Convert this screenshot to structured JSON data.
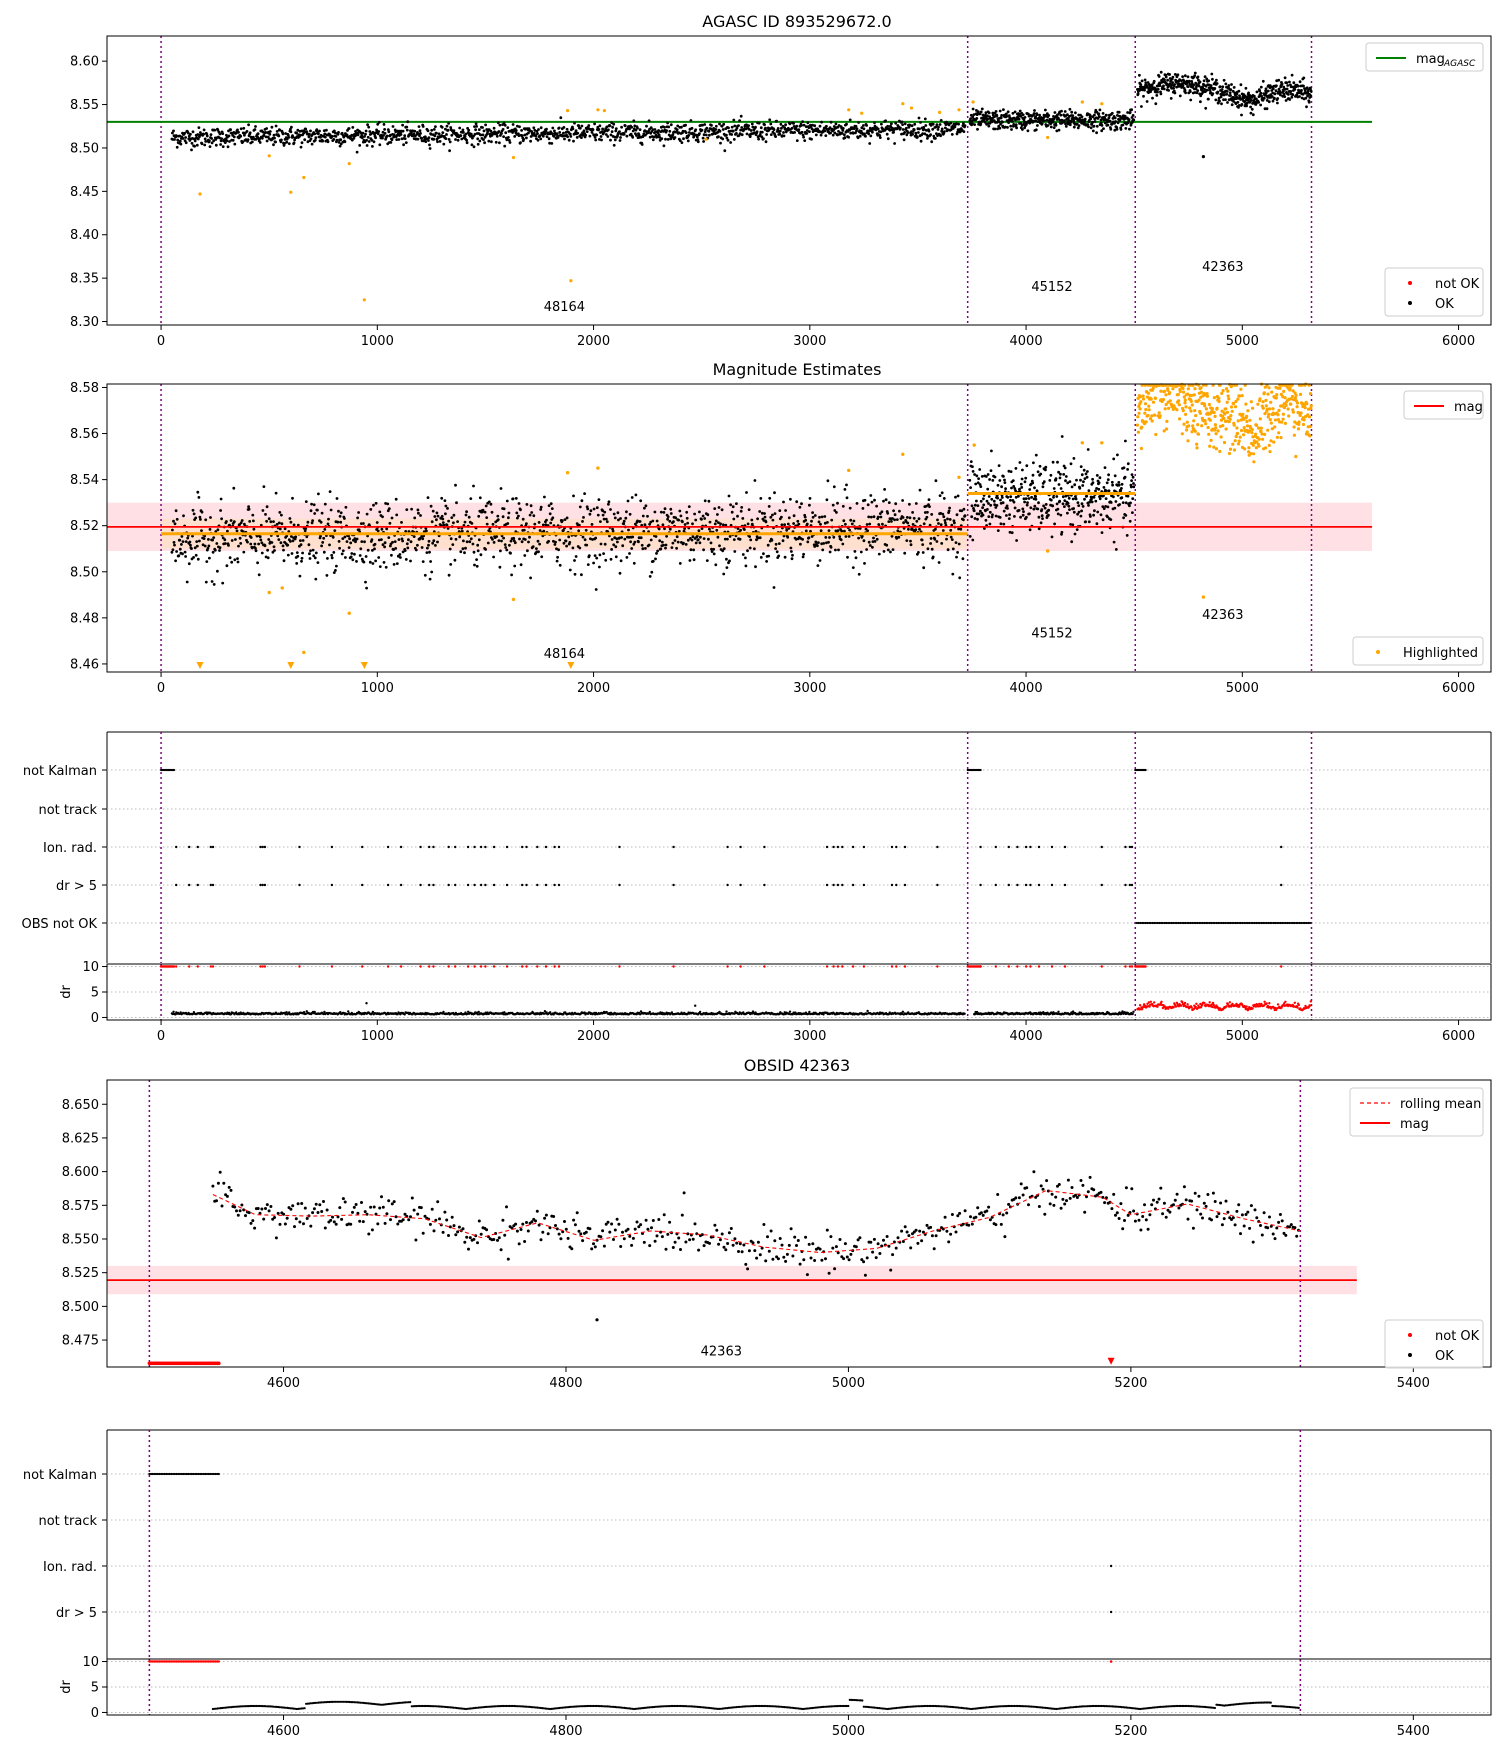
{
  "colors": {
    "ok": "#000000",
    "not_ok": "#ff0000",
    "highlight": "#ffa500",
    "agasc_line": "#008000",
    "mag_line": "#ff0000",
    "obs_boundary": "#800080",
    "band": "#ffd6dc",
    "orange_band": "#ffe0c8",
    "grid": "#bbbbbb"
  },
  "chart_data": [
    {
      "id": "agasc",
      "type": "scatter",
      "title": "AGASC ID 893529672.0",
      "xlabel": "",
      "ylabel": "",
      "xlim": [
        -250,
        6150
      ],
      "ylim": [
        8.296,
        8.629
      ],
      "xticks": [
        0,
        1000,
        2000,
        3000,
        4000,
        5000,
        6000
      ],
      "yticks": [
        8.3,
        8.35,
        8.4,
        8.45,
        8.5,
        8.55,
        8.6
      ],
      "ytick_labels": [
        "8.30",
        "8.35",
        "8.40",
        "8.45",
        "8.50",
        "8.55",
        "8.60"
      ],
      "grid": false,
      "boundaries": [
        0,
        3730,
        4505,
        5320
      ],
      "obsid_labels": [
        {
          "text": "48164",
          "x": 1865,
          "y": 8.312
        },
        {
          "text": "45152",
          "x": 4120,
          "y": 8.335
        },
        {
          "text": "42363",
          "x": 4910,
          "y": 8.358
        }
      ],
      "hline": {
        "y": 8.53,
        "x0": -250,
        "x1": 5600,
        "name": "mag"
      },
      "legend_top": {
        "position": "top-right",
        "entries": [
          {
            "label": "mag",
            "sub": "AGASC",
            "style": "line"
          }
        ]
      },
      "legend_bottom": {
        "position": "bottom-right",
        "entries": [
          {
            "label": "not OK",
            "style": "dot-red"
          },
          {
            "label": "OK",
            "style": "dot-black"
          }
        ]
      },
      "segments": [
        {
          "x0": 50,
          "x1": 3720,
          "start": 8.512,
          "end": 8.522,
          "noise": 0.0055,
          "n": 1500
        },
        {
          "x0": 3740,
          "x1": 4500,
          "start": 8.532,
          "end": 8.532,
          "noise": 0.0055,
          "n": 450
        },
        {
          "x0": 4515,
          "x1": 5320,
          "start": 8.566,
          "end": 8.56,
          "noise": 0.0065,
          "n": 520
        }
      ],
      "highlighted": [
        [
          180,
          8.447
        ],
        [
          600,
          8.449
        ],
        [
          660,
          8.466
        ],
        [
          870,
          8.482
        ],
        [
          940,
          8.325
        ],
        [
          1630,
          8.489
        ],
        [
          1880,
          8.543
        ],
        [
          1895,
          8.347
        ],
        [
          2020,
          8.544
        ],
        [
          2050,
          8.543
        ],
        [
          2520,
          8.51
        ],
        [
          3180,
          8.544
        ],
        [
          3240,
          8.54
        ],
        [
          3430,
          8.551
        ],
        [
          3470,
          8.546
        ],
        [
          3600,
          8.541
        ],
        [
          3690,
          8.544
        ],
        [
          3755,
          8.553
        ],
        [
          4100,
          8.512
        ],
        [
          4260,
          8.553
        ],
        [
          4350,
          8.551
        ],
        [
          500,
          8.491
        ]
      ],
      "extra_points": [
        [
          4820,
          8.49
        ]
      ]
    },
    {
      "id": "estimates",
      "type": "scatter",
      "title": "Magnitude Estimates",
      "xlabel": "",
      "ylabel": "",
      "xlim": [
        -250,
        6150
      ],
      "ylim": [
        8.4565,
        8.5815
      ],
      "xticks": [
        0,
        1000,
        2000,
        3000,
        4000,
        5000,
        6000
      ],
      "yticks": [
        8.46,
        8.48,
        8.5,
        8.52,
        8.54,
        8.56,
        8.58
      ],
      "ytick_labels": [
        "8.46",
        "8.48",
        "8.50",
        "8.52",
        "8.54",
        "8.56",
        "8.58"
      ],
      "grid": false,
      "boundaries": [
        0,
        3730,
        4505,
        5320
      ],
      "obsid_labels": [
        {
          "text": "48164",
          "x": 1865,
          "y": 8.4625
        },
        {
          "text": "45152",
          "x": 4120,
          "y": 8.4715
        },
        {
          "text": "42363",
          "x": 4910,
          "y": 8.4795
        }
      ],
      "hline": {
        "y": 8.5195,
        "x0": -250,
        "x1": 5600,
        "name": "mag"
      },
      "band": {
        "y0": 8.509,
        "y1": 8.53,
        "x0": -250,
        "x1": 5600
      },
      "orange_lines": [
        {
          "x0": 0,
          "x1": 3730,
          "y": 8.5165
        },
        {
          "x0": 3730,
          "x1": 4505,
          "y": 8.534
        }
      ],
      "orange_band": {
        "x0": 0,
        "x1": 3730,
        "y0": 8.51,
        "y1": 8.523
      },
      "legend_top": {
        "position": "top-right",
        "entries": [
          {
            "label": "mag",
            "style": "line-red"
          }
        ]
      },
      "legend_bottom": {
        "position": "bottom-right",
        "entries": [
          {
            "label": "Highlighted",
            "style": "dot-orange"
          }
        ]
      },
      "segments": [
        {
          "x0": 50,
          "x1": 3720,
          "start": 8.514,
          "end": 8.52,
          "noise": 0.0075,
          "n": 1500
        },
        {
          "x0": 3740,
          "x1": 4500,
          "start": 8.532,
          "end": 8.532,
          "noise": 0.0075,
          "n": 450
        }
      ],
      "orange_segment": {
        "x0": 4515,
        "x1": 5320,
        "start": 8.566,
        "end": 8.565,
        "noise": 0.008,
        "n": 520
      },
      "highlighted": [
        [
          500,
          8.491
        ],
        [
          560,
          8.493
        ],
        [
          660,
          8.465
        ],
        [
          870,
          8.482
        ],
        [
          1630,
          8.488
        ],
        [
          1880,
          8.543
        ],
        [
          2020,
          8.545
        ],
        [
          3180,
          8.544
        ],
        [
          3430,
          8.551
        ],
        [
          3690,
          8.541
        ],
        [
          3760,
          8.555
        ],
        [
          4100,
          8.509
        ],
        [
          4260,
          8.556
        ],
        [
          4350,
          8.556
        ],
        [
          4820,
          8.489
        ]
      ],
      "triangles": [
        [
          180,
          8.458
        ],
        [
          600,
          8.458
        ],
        [
          940,
          8.458
        ],
        [
          1895,
          8.458
        ]
      ]
    },
    {
      "id": "flags",
      "type": "scatter",
      "title": "",
      "xlim": [
        -250,
        6150
      ],
      "categories": [
        "not Kalman",
        "not track",
        "Ion. rad.",
        "dr > 5",
        "OBS not OK"
      ],
      "boundaries": [
        0,
        3730,
        4505,
        5320
      ],
      "flag_marks": {
        "not Kalman": [
          [
            0,
            60
          ],
          [
            3730,
            3790
          ],
          [
            4505,
            4555
          ]
        ],
        "not track": [],
        "Ion. rad.": [
          70,
          130,
          170,
          230,
          240,
          460,
          470,
          480,
          640,
          790,
          930,
          1050,
          1110,
          1200,
          1240,
          1260,
          1330,
          1360,
          1420,
          1450,
          1480,
          1500,
          1540,
          1600,
          1670,
          1690,
          1740,
          1780,
          1820,
          1840,
          2120,
          2370,
          2620,
          2680,
          2790,
          3080,
          3110,
          3130,
          3150,
          3200,
          3250,
          3380,
          3400,
          3440,
          3590,
          3790,
          3860,
          3920,
          3960,
          4000,
          4020,
          4060,
          4120,
          4180,
          4350,
          4460,
          4480,
          4490,
          5180
        ],
        "dr > 5": [
          70,
          130,
          170,
          230,
          240,
          460,
          470,
          480,
          640,
          790,
          930,
          1050,
          1110,
          1200,
          1240,
          1260,
          1330,
          1360,
          1420,
          1450,
          1480,
          1500,
          1540,
          1600,
          1670,
          1690,
          1740,
          1780,
          1820,
          1840,
          2120,
          2370,
          2620,
          2680,
          2790,
          3080,
          3110,
          3130,
          3150,
          3200,
          3250,
          3380,
          3400,
          3440,
          3590,
          3790,
          3860,
          3920,
          3960,
          4000,
          4020,
          4060,
          4120,
          4180,
          4350,
          4460,
          4480,
          4490,
          5180
        ],
        "OBS not OK": [
          [
            4505,
            5320
          ]
        ]
      }
    },
    {
      "id": "dr",
      "type": "scatter",
      "ylabel": "dr",
      "xlim": [
        -250,
        6150
      ],
      "ylim": [
        -0.5,
        10.5
      ],
      "yticks": [
        0,
        5,
        10
      ],
      "ytick_labels": [
        "0",
        "5",
        "10"
      ],
      "xticks": [
        0,
        1000,
        2000,
        3000,
        4000,
        5000,
        6000
      ],
      "boundaries": [
        0,
        3730,
        4505,
        5320
      ],
      "segments": [
        {
          "x0": 50,
          "x1": 3720,
          "mean": 0.6,
          "noise": 0.25,
          "n": 900,
          "color": "ok"
        },
        {
          "x0": 3760,
          "x1": 4500,
          "mean": 0.6,
          "noise": 0.25,
          "n": 220,
          "color": "ok"
        },
        {
          "x0": 4515,
          "x1": 5320,
          "mean": 1.3,
          "noise": 0.5,
          "n": 260,
          "color": "not_ok"
        }
      ],
      "outliers": [
        [
          950,
          2.8
        ],
        [
          2470,
          2.3
        ]
      ],
      "top_red": [
        [
          0,
          60
        ],
        [
          3730,
          3790
        ],
        [
          4505,
          4555
        ]
      ],
      "top_red_singles": [
        70,
        130,
        170,
        230,
        240,
        460,
        470,
        480,
        640,
        790,
        930,
        1050,
        1110,
        1200,
        1240,
        1260,
        1330,
        1360,
        1420,
        1450,
        1480,
        1500,
        1540,
        1600,
        1670,
        1690,
        1740,
        1780,
        1820,
        1840,
        2120,
        2370,
        2620,
        2680,
        2790,
        3080,
        3110,
        3130,
        3150,
        3200,
        3250,
        3380,
        3400,
        3440,
        3590,
        3790,
        3860,
        3920,
        3960,
        4000,
        4020,
        4060,
        4120,
        4180,
        4350,
        4460,
        4480,
        4490,
        5180
      ]
    },
    {
      "id": "obsid",
      "type": "scatter",
      "title": "OBSID 42363",
      "xlim": [
        4475,
        5455
      ],
      "ylim": [
        8.455,
        8.668
      ],
      "xticks": [
        4600,
        4800,
        5000,
        5200,
        5400
      ],
      "yticks": [
        8.475,
        8.5,
        8.525,
        8.55,
        8.575,
        8.6,
        8.625,
        8.65
      ],
      "ytick_labels": [
        "8.475",
        "8.500",
        "8.525",
        "8.550",
        "8.575",
        "8.600",
        "8.625",
        "8.650"
      ],
      "boundaries": [
        4505,
        5320
      ],
      "obsid_labels": [
        {
          "text": "42363",
          "x": 4910,
          "y": 8.4635
        }
      ],
      "hline": {
        "y": 8.5195,
        "x0": 4475,
        "x1": 5360,
        "name": "mag"
      },
      "band": {
        "y0": 8.509,
        "y1": 8.53,
        "x0": 4475,
        "x1": 5360
      },
      "legend_top": {
        "position": "top-right",
        "entries": [
          {
            "label": "rolling mean",
            "style": "dash-red"
          },
          {
            "label": "mag",
            "style": "line-red"
          }
        ]
      },
      "legend_bottom": {
        "position": "bottom-right",
        "entries": [
          {
            "label": "not OK",
            "style": "dot-red"
          },
          {
            "label": "OK",
            "style": "dot-black"
          }
        ]
      },
      "rolling_mean": [
        [
          4550,
          8.583
        ],
        [
          4580,
          8.568
        ],
        [
          4620,
          8.567
        ],
        [
          4660,
          8.568
        ],
        [
          4700,
          8.565
        ],
        [
          4740,
          8.551
        ],
        [
          4780,
          8.562
        ],
        [
          4820,
          8.549
        ],
        [
          4860,
          8.556
        ],
        [
          4900,
          8.553
        ],
        [
          4940,
          8.544
        ],
        [
          4980,
          8.54
        ],
        [
          5020,
          8.543
        ],
        [
          5060,
          8.556
        ],
        [
          5100,
          8.566
        ],
        [
          5140,
          8.586
        ],
        [
          5180,
          8.581
        ],
        [
          5200,
          8.568
        ],
        [
          5240,
          8.576
        ],
        [
          5280,
          8.565
        ],
        [
          5320,
          8.556
        ]
      ],
      "points_range": [
        4550,
        5320
      ],
      "points_n": 600,
      "points_noise": 0.007,
      "extra_points": [
        [
          4822,
          8.49
        ]
      ],
      "red_low": [
        [
          4505,
          4555
        ]
      ],
      "red_low_y": 8.457,
      "red_triangle": [
        [
          5186,
          8.457
        ]
      ]
    },
    {
      "id": "obsid_flags",
      "type": "scatter",
      "xlim": [
        4475,
        5455
      ],
      "categories": [
        "not Kalman",
        "not track",
        "Ion. rad.",
        "dr > 5"
      ],
      "boundaries": [
        4505,
        5320
      ],
      "flag_marks": {
        "not Kalman": [
          [
            4505,
            4555
          ]
        ],
        "not track": [],
        "Ion. rad.": [
          5186
        ],
        "dr > 5": [
          5186
        ]
      }
    },
    {
      "id": "obsid_dr",
      "type": "scatter",
      "ylabel": "dr",
      "xlim": [
        4475,
        5455
      ],
      "ylim": [
        -0.5,
        10.5
      ],
      "yticks": [
        0,
        5,
        10
      ],
      "ytick_labels": [
        "0",
        "5",
        "10"
      ],
      "xticks": [
        4600,
        4800,
        5000,
        5200,
        5400
      ],
      "boundaries": [
        4505,
        5320
      ],
      "top_red": [
        [
          4505,
          4555
        ]
      ],
      "top_red_singles": [
        5186
      ],
      "points_range": [
        4550,
        5320
      ],
      "points_n": 700
    }
  ]
}
